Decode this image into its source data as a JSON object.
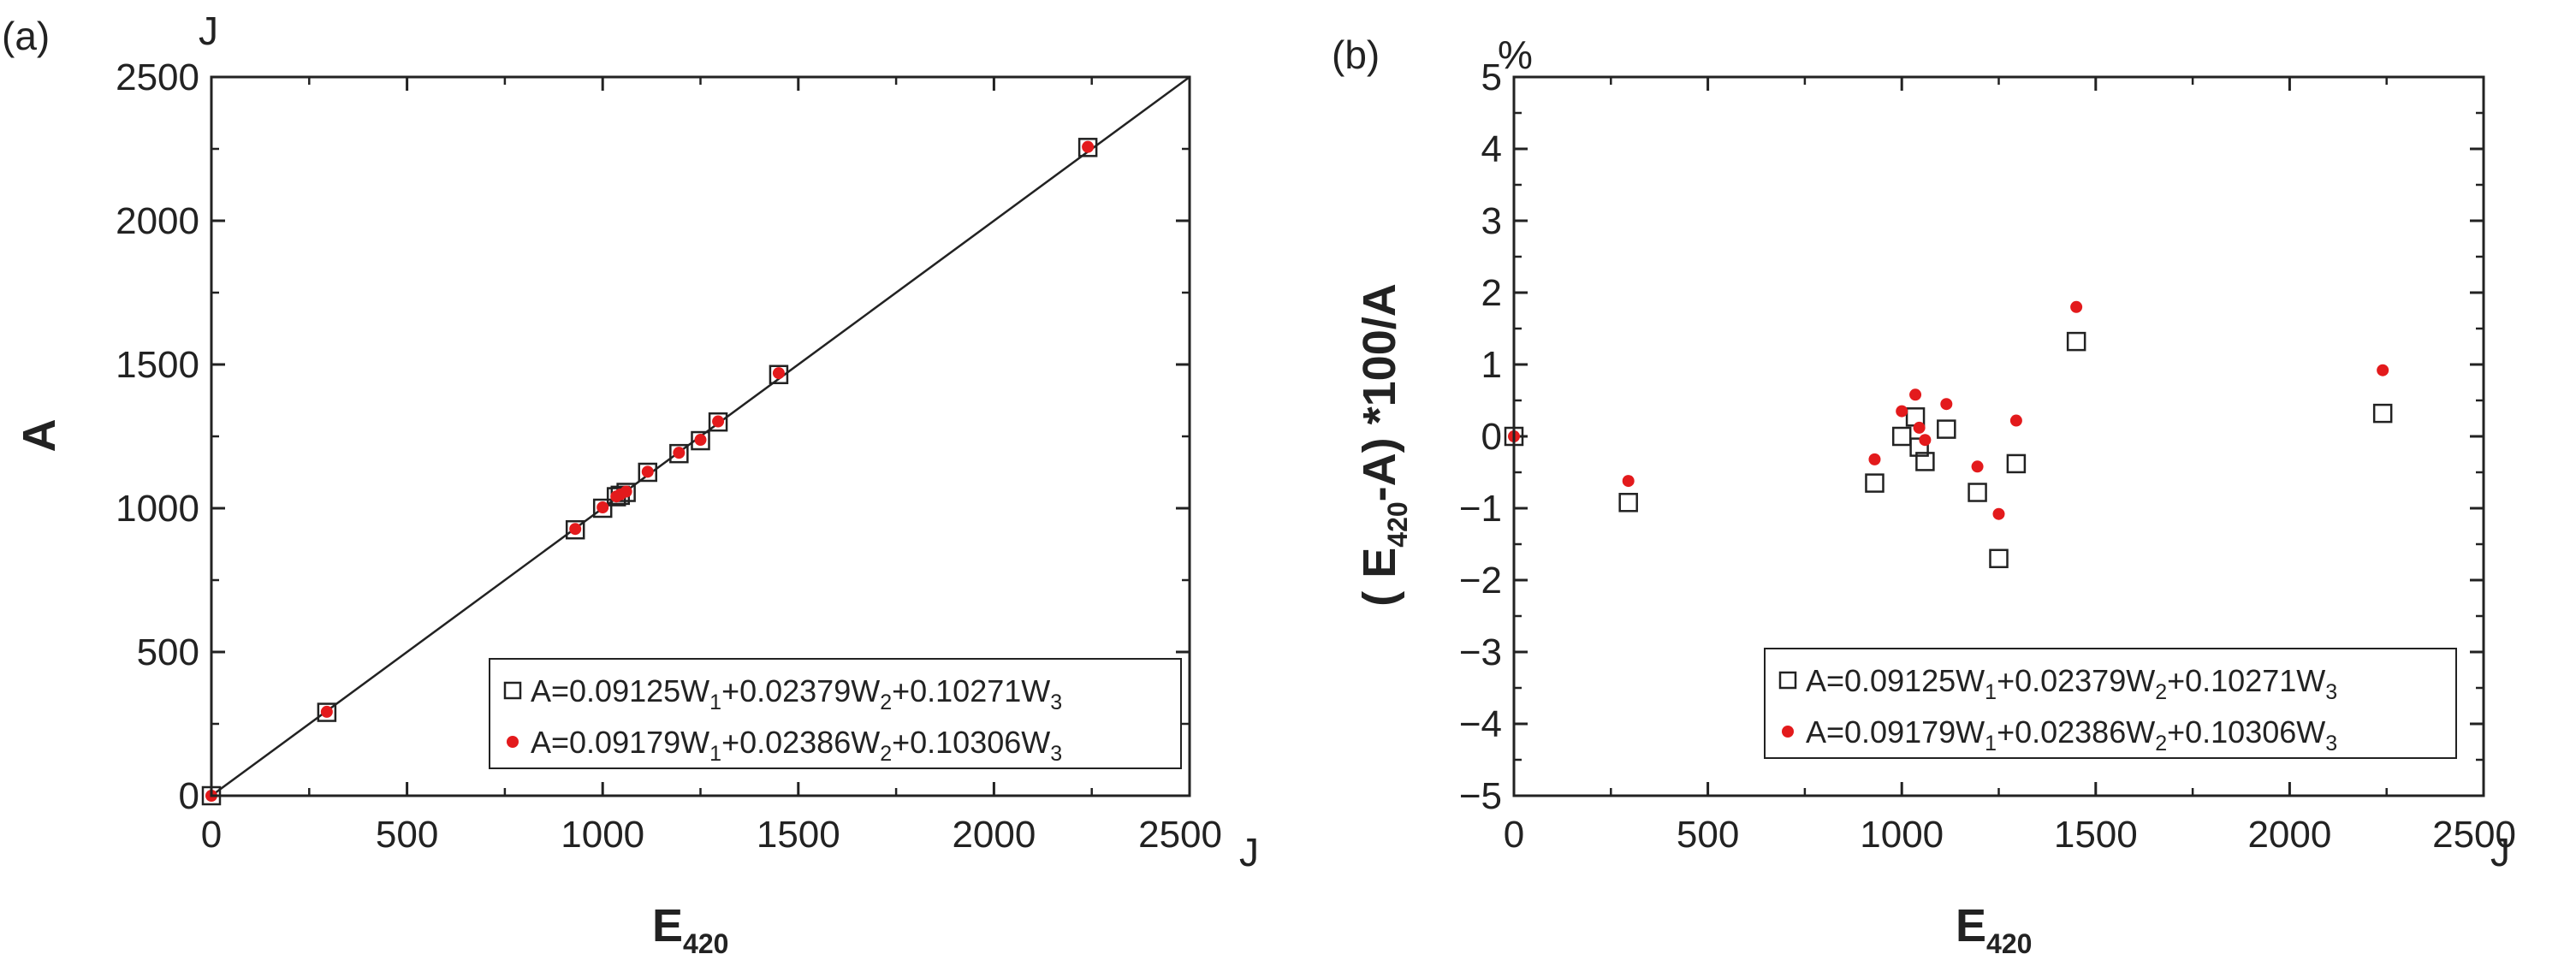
{
  "chart_data": [
    {
      "type": "scatter",
      "panel_label": "(a)",
      "xlabel": "E",
      "xlabel_sub": "420",
      "ylabel": "A",
      "x_unit": "J",
      "y_unit": "J",
      "xlim": [
        0,
        2500
      ],
      "ylim": [
        0,
        2500
      ],
      "x_ticks": [
        0,
        500,
        1000,
        1500,
        2000,
        2500
      ],
      "x_tick_labels": [
        "0",
        "500",
        "1000",
        "1500",
        "2000",
        "2500"
      ],
      "y_ticks": [
        0,
        500,
        1000,
        1500,
        2000,
        2500
      ],
      "y_tick_labels": [
        "0",
        "500",
        "1000",
        "1500",
        "2000",
        "2500"
      ],
      "reference_line": {
        "x": [
          0,
          2500
        ],
        "y": [
          0,
          2500
        ]
      },
      "legend": {
        "placement": "bottom-right"
      },
      "series": [
        {
          "name": "A=0.09125W1+0.02379W2+0.10271W3",
          "legend_parts": [
            "A=0.09125W",
            "1",
            "+0.02379W",
            "2",
            "+0.10271W",
            "3"
          ],
          "marker": "open-square",
          "color": "#222222",
          "x": [
            0,
            295,
            930,
            1000,
            1035,
            1045,
            1060,
            1115,
            1195,
            1250,
            1295,
            1450,
            2240
          ],
          "y": [
            0,
            290,
            925,
            1000,
            1040,
            1045,
            1055,
            1125,
            1190,
            1235,
            1300,
            1465,
            2255
          ]
        },
        {
          "name": "A=0.09179W1+0.02386W2+0.10306W3",
          "legend_parts": [
            "A=0.09179W",
            "1",
            "+0.02386W",
            "2",
            "+0.10306W",
            "3"
          ],
          "marker": "filled-circle",
          "color": "#e31a1c",
          "x": [
            0,
            295,
            930,
            1000,
            1035,
            1045,
            1060,
            1115,
            1195,
            1250,
            1295,
            1450,
            2240
          ],
          "y": [
            0,
            292,
            928,
            1003,
            1041,
            1048,
            1058,
            1127,
            1193,
            1238,
            1302,
            1470,
            2257
          ]
        }
      ]
    },
    {
      "type": "scatter",
      "panel_label": "(b)",
      "xlabel": "E",
      "xlabel_sub": "420",
      "ylabel_parts": [
        "( E",
        "420",
        "-A) *100/A"
      ],
      "x_unit": "J",
      "y_unit": "%",
      "xlim": [
        0,
        2500
      ],
      "ylim": [
        -5,
        5
      ],
      "x_ticks": [
        0,
        500,
        1000,
        1500,
        2000,
        2500
      ],
      "x_tick_labels": [
        "0",
        "500",
        "1000",
        "1500",
        "2000",
        "2500"
      ],
      "y_ticks": [
        -5,
        -4,
        -3,
        -2,
        -1,
        0,
        1,
        2,
        3,
        4,
        5
      ],
      "y_tick_labels": [
        "−5",
        "−4",
        "−3",
        "−2",
        "−1",
        "0",
        "1",
        "2",
        "3",
        "4",
        "5"
      ],
      "legend": {
        "placement": "bottom-right"
      },
      "series": [
        {
          "name": "A=0.09125W1+0.02379W2+0.10271W3",
          "legend_parts": [
            "A=0.09125W",
            "1",
            "+0.02379W",
            "2",
            "+0.10271W",
            "3"
          ],
          "marker": "open-square",
          "color": "#222222",
          "x": [
            0,
            295,
            930,
            1000,
            1035,
            1045,
            1060,
            1115,
            1195,
            1250,
            1295,
            1450,
            2240
          ],
          "y": [
            0.0,
            -0.92,
            -0.65,
            0.0,
            0.27,
            -0.15,
            -0.35,
            0.1,
            -0.78,
            -1.7,
            -0.38,
            1.32,
            0.32
          ]
        },
        {
          "name": "A=0.09179W1+0.02386W2+0.10306W3",
          "legend_parts": [
            "A=0.09179W",
            "1",
            "+0.02386W",
            "2",
            "+0.10306W",
            "3"
          ],
          "marker": "filled-circle",
          "color": "#e31a1c",
          "x": [
            0,
            295,
            930,
            1000,
            1035,
            1045,
            1060,
            1115,
            1195,
            1250,
            1295,
            1450,
            2240
          ],
          "y": [
            0.0,
            -0.62,
            -0.32,
            0.35,
            0.58,
            0.12,
            -0.05,
            0.45,
            -0.42,
            -1.08,
            0.22,
            1.8,
            0.92
          ]
        }
      ]
    }
  ]
}
